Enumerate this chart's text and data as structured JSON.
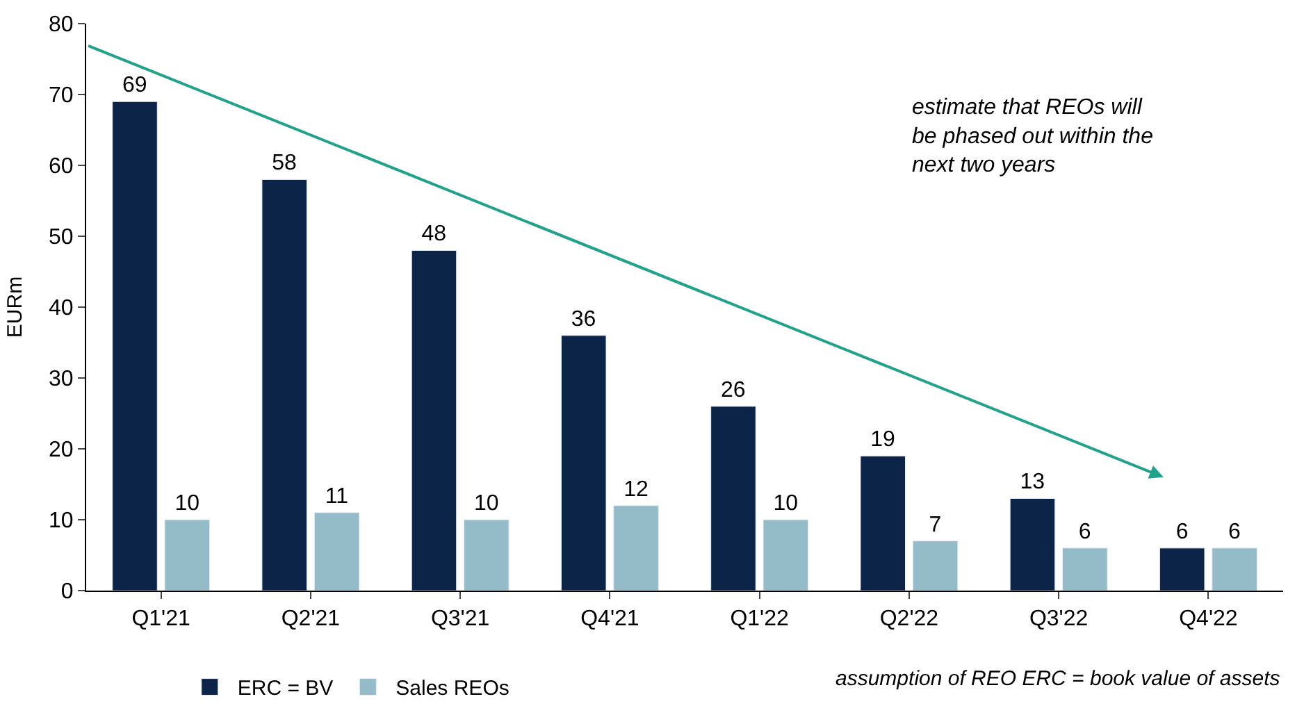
{
  "chart_data": {
    "type": "bar",
    "ylabel": "EURm",
    "categories": [
      "Q1'21",
      "Q2'21",
      "Q3'21",
      "Q4'21",
      "Q1'22",
      "Q2'22",
      "Q3'22",
      "Q4'22"
    ],
    "series": [
      {
        "name": "ERC = BV",
        "color": "#0c2448",
        "values": [
          69,
          58,
          48,
          36,
          26,
          19,
          13,
          6
        ]
      },
      {
        "name": "Sales REOs",
        "color": "#93bcc8",
        "values": [
          10,
          11,
          10,
          12,
          10,
          7,
          6,
          6
        ]
      }
    ],
    "ylim": [
      0,
      80
    ],
    "yticks": [
      0,
      10,
      20,
      30,
      40,
      50,
      60,
      70,
      80
    ],
    "data_labels": true,
    "legend": "bottom",
    "annotations": [
      "estimate that REOs will be phased out within the next two years",
      "assumption of REO ERC = book value of assets"
    ]
  }
}
